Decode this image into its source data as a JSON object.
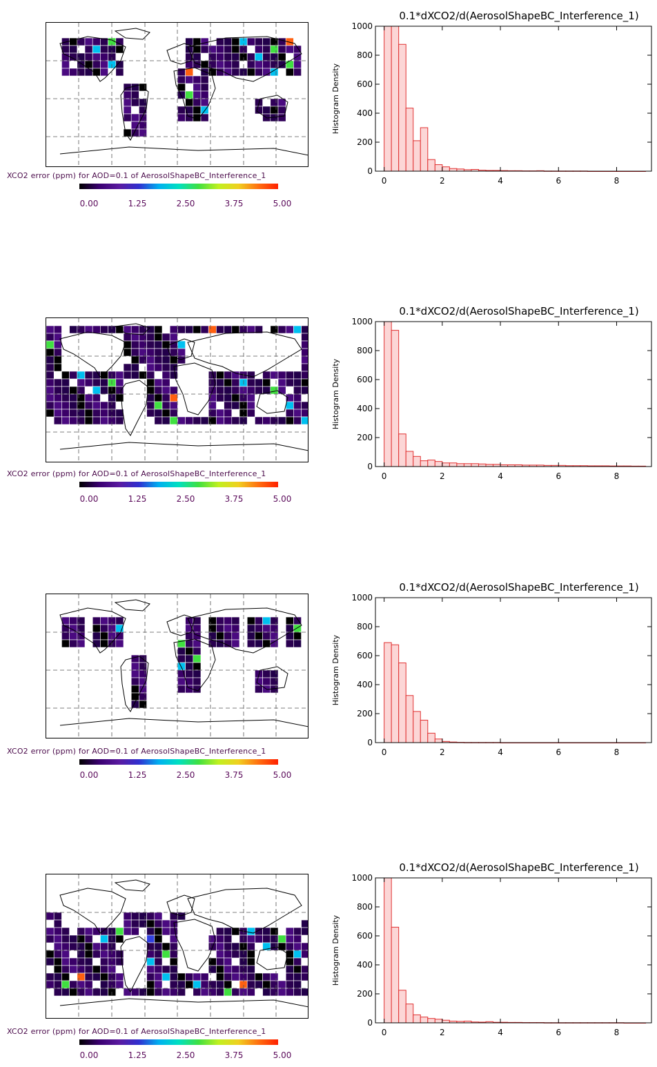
{
  "colorbar": {
    "ticks": [
      "0.00",
      "1.25",
      "2.50",
      "3.75",
      "5.00"
    ],
    "colors": [
      "#000000",
      "#3a0070",
      "#5a1aa0",
      "#3030d0",
      "#00b0f0",
      "#00e0c0",
      "#40e040",
      "#c0f020",
      "#f0d020",
      "#ff7010",
      "#ff2000"
    ]
  },
  "panels": [
    {
      "map_caption": "XCO2 error (ppm) for AOD=0.1 of AerosolShapeBC_Interference_1",
      "map_pattern": "land"
    },
    {
      "map_caption": "XCO2 error (ppm) for AOD=0.1 of AerosolShapeBC_Interference_1",
      "map_pattern": "ocean"
    },
    {
      "map_caption": "XCO2 error (ppm) for AOD=0.1 of AerosolShapeBC_Interference_1",
      "map_pattern": "land-sparse"
    },
    {
      "map_caption": "XCO2 error (ppm) for AOD=0.1 of AerosolShapeBC_Interference_1",
      "map_pattern": "ocean-south"
    }
  ],
  "chart_data": [
    {
      "type": "bar",
      "title": "0.1*dXCO2/d(AerosolShapeBC_Interference_1)",
      "ylabel": "Histogram Density",
      "xlabel": "",
      "xlim": [
        -0.3,
        9.2
      ],
      "ylim": [
        0,
        1000
      ],
      "xticks": [
        0,
        2,
        4,
        6,
        8
      ],
      "yticks": [
        0,
        200,
        400,
        600,
        800,
        1000
      ],
      "bin_width": 0.25,
      "bin_start": 0,
      "values": [
        1000,
        1000,
        875,
        435,
        210,
        300,
        80,
        45,
        30,
        18,
        15,
        10,
        12,
        7,
        5,
        5,
        4,
        3,
        3,
        2,
        2,
        3,
        1,
        1,
        1,
        1,
        1,
        1,
        0,
        0,
        0,
        0,
        0,
        0,
        0,
        0
      ]
    },
    {
      "type": "bar",
      "title": "0.1*dXCO2/d(AerosolShapeBC_Interference_1)",
      "ylabel": "Histogram Density",
      "xlabel": "",
      "xlim": [
        -0.3,
        9.2
      ],
      "ylim": [
        0,
        1000
      ],
      "xticks": [
        0,
        2,
        4,
        6,
        8
      ],
      "yticks": [
        0,
        200,
        400,
        600,
        800,
        1000
      ],
      "bin_width": 0.25,
      "bin_start": 0,
      "values": [
        1000,
        940,
        225,
        105,
        70,
        40,
        45,
        35,
        25,
        25,
        20,
        20,
        20,
        18,
        15,
        15,
        12,
        12,
        12,
        10,
        10,
        10,
        8,
        8,
        8,
        6,
        6,
        6,
        5,
        5,
        5,
        4,
        4,
        4,
        3,
        3
      ]
    },
    {
      "type": "bar",
      "title": "0.1*dXCO2/d(AerosolShapeBC_Interference_1)",
      "ylabel": "Histogram Density",
      "xlabel": "",
      "xlim": [
        -0.3,
        9.2
      ],
      "ylim": [
        0,
        1000
      ],
      "xticks": [
        0,
        2,
        4,
        6,
        8
      ],
      "yticks": [
        0,
        200,
        400,
        600,
        800,
        1000
      ],
      "bin_width": 0.25,
      "bin_start": 0,
      "values": [
        690,
        675,
        550,
        325,
        215,
        155,
        65,
        25,
        8,
        4,
        2,
        1,
        1,
        1,
        1,
        1,
        0,
        0,
        0,
        0,
        0,
        0,
        0,
        0,
        0,
        0,
        0,
        0,
        0,
        0,
        0,
        0,
        0,
        0,
        0,
        0
      ]
    },
    {
      "type": "bar",
      "title": "0.1*dXCO2/d(AerosolShapeBC_Interference_1)",
      "ylabel": "Histogram Density",
      "xlabel": "",
      "xlim": [
        -0.3,
        9.2
      ],
      "ylim": [
        0,
        1000
      ],
      "xticks": [
        0,
        2,
        4,
        6,
        8
      ],
      "yticks": [
        0,
        200,
        400,
        600,
        800,
        1000
      ],
      "bin_width": 0.25,
      "bin_start": 0,
      "values": [
        1000,
        660,
        225,
        130,
        55,
        40,
        30,
        25,
        18,
        12,
        10,
        12,
        6,
        5,
        8,
        4,
        4,
        3,
        3,
        2,
        2,
        2,
        1,
        1,
        1,
        1,
        1,
        1,
        1,
        1,
        1,
        1,
        1,
        0,
        0,
        0
      ]
    }
  ]
}
